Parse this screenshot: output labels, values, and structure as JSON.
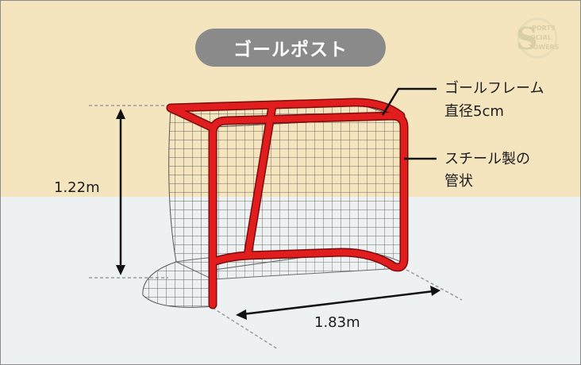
{
  "title": "ゴールポスト",
  "labels": {
    "frame": [
      "ゴールフレーム",
      "直径5cm"
    ],
    "material": [
      "スチール製の",
      "管状"
    ],
    "height": "1.22m",
    "width": "1.83m"
  },
  "logo": {
    "lettering": "SPORTS SOCIAL TOWERS",
    "color": "#d8cfa7"
  },
  "colors": {
    "background_top": "#f5e5bf",
    "background_bottom": "#eef1f2",
    "title_pill": "#8a8a8a",
    "post": "#e11d1d",
    "net": "#555555",
    "dimension_line": "#111111"
  }
}
